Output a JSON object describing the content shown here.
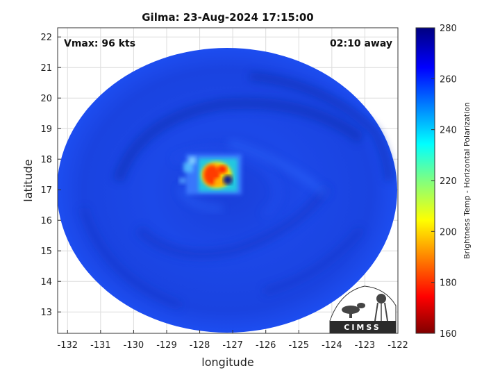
{
  "title": "Gilma: 23-Aug-2024 17:15:00",
  "vmax_label": "Vmax: 96 kts",
  "time_away_label": "02:10 away",
  "xlabel": "longitude",
  "ylabel": "latitude",
  "colorbar_label": "Brightness Temp - Horizontal Polarization",
  "logo_text": "CIMSS",
  "chart_data": {
    "type": "heatmap",
    "title": "Gilma: 23-Aug-2024 17:15:00",
    "xlabel": "longitude",
    "ylabel": "latitude",
    "xlim": [
      -132.3,
      -122
    ],
    "ylim": [
      12.3,
      22.3
    ],
    "x_ticks": [
      -132,
      -131,
      -130,
      -129,
      -128,
      -127,
      -126,
      -125,
      -124,
      -123,
      -122
    ],
    "y_ticks": [
      13,
      14,
      15,
      16,
      17,
      18,
      19,
      20,
      21,
      22
    ],
    "grid": true,
    "colorbar": {
      "label": "Brightness Temp - Horizontal Polarization",
      "range": [
        160,
        280
      ],
      "ticks": [
        160,
        180,
        200,
        220,
        240,
        260,
        280
      ],
      "colormap": "jet"
    },
    "storm_center": {
      "lon": -127.4,
      "lat": 17.4
    },
    "swath_center": {
      "lon": -127.0,
      "lat": 17.4
    },
    "background_temp": 262,
    "eyewall_min_temp": 185
  }
}
